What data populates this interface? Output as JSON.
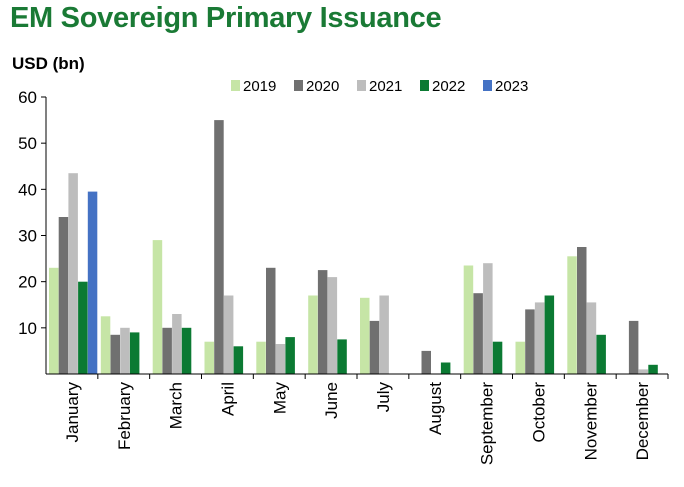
{
  "chart_data": {
    "type": "bar",
    "title": "EM Sovereign Primary Issuance",
    "ylabel": "USD (bn)",
    "xlabel": "",
    "ylim": [
      0,
      60
    ],
    "yticks": [
      10,
      20,
      30,
      40,
      50,
      60
    ],
    "grid": false,
    "legend_position": "top",
    "categories": [
      "January",
      "February",
      "March",
      "April",
      "May",
      "June",
      "July",
      "August",
      "September",
      "October",
      "November",
      "December"
    ],
    "series": [
      {
        "name": "2019",
        "color": "#c6e5a6",
        "values": [
          23,
          12.5,
          29,
          7,
          7,
          17,
          16.5,
          null,
          23.5,
          7,
          25.5,
          null
        ]
      },
      {
        "name": "2020",
        "color": "#707070",
        "values": [
          34,
          8.5,
          10,
          55,
          23,
          22.5,
          11.5,
          5,
          17.5,
          14,
          27.5,
          11.5
        ]
      },
      {
        "name": "2021",
        "color": "#bdbdbd",
        "values": [
          43.5,
          10,
          13,
          17,
          6.5,
          21,
          17,
          null,
          24,
          15.5,
          15.5,
          1
        ]
      },
      {
        "name": "2022",
        "color": "#0b7a33",
        "values": [
          20,
          9,
          10,
          6,
          8,
          7.5,
          null,
          2.5,
          7,
          17,
          8.5,
          2
        ]
      },
      {
        "name": "2023",
        "color": "#4472c4",
        "values": [
          39.5,
          null,
          null,
          null,
          null,
          null,
          null,
          null,
          null,
          null,
          null,
          null
        ]
      }
    ]
  }
}
